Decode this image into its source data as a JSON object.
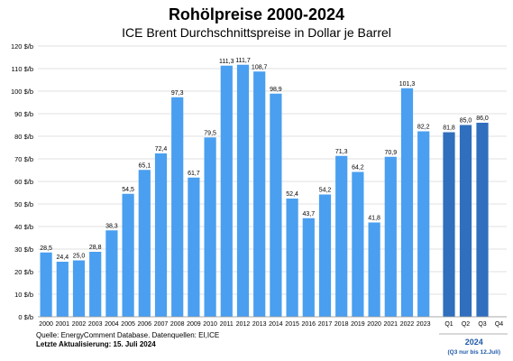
{
  "chart_data": {
    "type": "bar",
    "title": "Rohölpreise 2000-2024",
    "subtitle": "ICE Brent Durchschnittspreise in Dollar je Barrel",
    "y_unit_suffix": " $/b",
    "ylim": [
      0,
      120
    ],
    "y_ticks": [
      0,
      10,
      20,
      30,
      40,
      50,
      60,
      70,
      80,
      90,
      100,
      110,
      120
    ],
    "grid": true,
    "annual": {
      "categories": [
        "2000",
        "2001",
        "2002",
        "2003",
        "2004",
        "2005",
        "2006",
        "2007",
        "2008",
        "2009",
        "2010",
        "2011",
        "2012",
        "2013",
        "2014",
        "2015",
        "2016",
        "2017",
        "2018",
        "2019",
        "2020",
        "2021",
        "2022",
        "2023"
      ],
      "values": [
        28.5,
        24.4,
        25.0,
        28.8,
        38.3,
        54.5,
        65.1,
        72.4,
        97.3,
        61.7,
        79.5,
        111.3,
        111.7,
        108.7,
        98.9,
        52.4,
        43.7,
        54.2,
        71.3,
        64.2,
        41.8,
        70.9,
        101.3,
        82.2
      ],
      "labels": [
        "28,5",
        "24,4",
        "25,0",
        "28,8",
        "38,3",
        "54,5",
        "65,1",
        "72,4",
        "97,3",
        "61,7",
        "79,5",
        "111,3",
        "111,7",
        "108,7",
        "98,9",
        "52,4",
        "43,7",
        "54,2",
        "71,3",
        "64,2",
        "41,8",
        "70,9",
        "101,3",
        "82,2"
      ],
      "color": "#4a9ff0"
    },
    "quarterly": {
      "categories": [
        "Q1",
        "Q2",
        "Q3",
        "Q4"
      ],
      "values": [
        81.8,
        85.0,
        86.0,
        null
      ],
      "labels": [
        "81,8",
        "85,0",
        "86,0",
        ""
      ],
      "color": "#2f6fbd",
      "group_label": "2024",
      "group_note": "(Q3 nur bis 12.Juli)",
      "group_color": "#1f5aa8"
    }
  },
  "footer": {
    "source": "Quelle: EnergyComment Database. Datenquellen: EI,ICE",
    "updated": "Letzte Aktualisierung: 15. Juli 2024"
  }
}
